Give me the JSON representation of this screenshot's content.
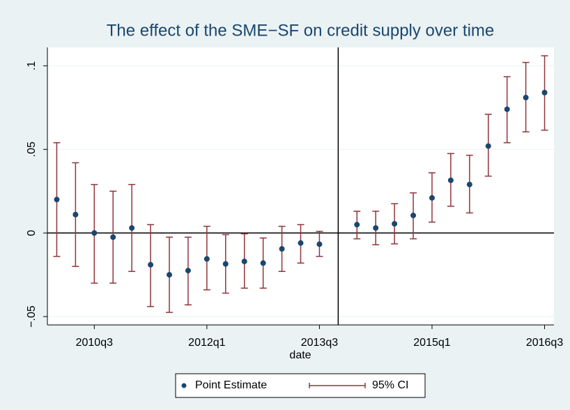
{
  "chart_data": {
    "type": "errorbar",
    "title": "The effect of the SME−SF on credit supply over time",
    "x_label": "date",
    "x": [
      200,
      201,
      202,
      203,
      204,
      205,
      206,
      207,
      208,
      209,
      210,
      211,
      212,
      213,
      214,
      216,
      217,
      218,
      219,
      220,
      221,
      222,
      223,
      224,
      225,
      226
    ],
    "series": [
      {
        "name": "Point Estimate",
        "color": "#1a476f",
        "values": [
          0.02,
          0.011,
          0.0,
          -0.0025,
          0.003,
          -0.019,
          -0.025,
          -0.0225,
          -0.0155,
          -0.0185,
          -0.017,
          -0.018,
          -0.0095,
          -0.006,
          -0.0067,
          0.005,
          0.003,
          0.0055,
          0.0105,
          0.021,
          0.0315,
          0.029,
          0.052,
          0.074,
          0.081,
          0.084
        ]
      },
      {
        "name": "95% CI",
        "color": "#90353b",
        "lower": [
          -0.014,
          -0.02,
          -0.03,
          -0.03,
          -0.023,
          -0.044,
          -0.0475,
          -0.043,
          -0.034,
          -0.036,
          -0.033,
          -0.033,
          -0.023,
          -0.018,
          -0.014,
          -0.0035,
          -0.007,
          -0.0065,
          -0.0035,
          0.0065,
          0.016,
          0.012,
          0.034,
          0.054,
          0.0605,
          0.0615
        ],
        "upper": [
          0.054,
          0.042,
          0.029,
          0.025,
          0.029,
          0.005,
          -0.0025,
          -0.0025,
          0.004,
          -0.001,
          -0.0005,
          -0.003,
          0.004,
          0.005,
          0.001,
          0.013,
          0.013,
          0.0175,
          0.024,
          0.036,
          0.0475,
          0.0465,
          0.071,
          0.0935,
          0.102,
          0.106
        ]
      }
    ],
    "xlim": [
      199.5,
      226.5
    ],
    "xticks": [
      {
        "value": 202,
        "label": "2010q3"
      },
      {
        "value": 208,
        "label": "2012q1"
      },
      {
        "value": 214,
        "label": "2013q3"
      },
      {
        "value": 220,
        "label": "2015q1"
      },
      {
        "value": 226,
        "label": "2016q3"
      }
    ],
    "ylim": [
      -0.055,
      0.111
    ],
    "yticks": [
      {
        "value": -0.05,
        "label": "−.05"
      },
      {
        "value": 0,
        "label": "0"
      },
      {
        "value": 0.05,
        "label": ".05"
      },
      {
        "value": 0.1,
        "label": ".1"
      }
    ],
    "xline": 215,
    "yline": 0,
    "grid": true
  }
}
